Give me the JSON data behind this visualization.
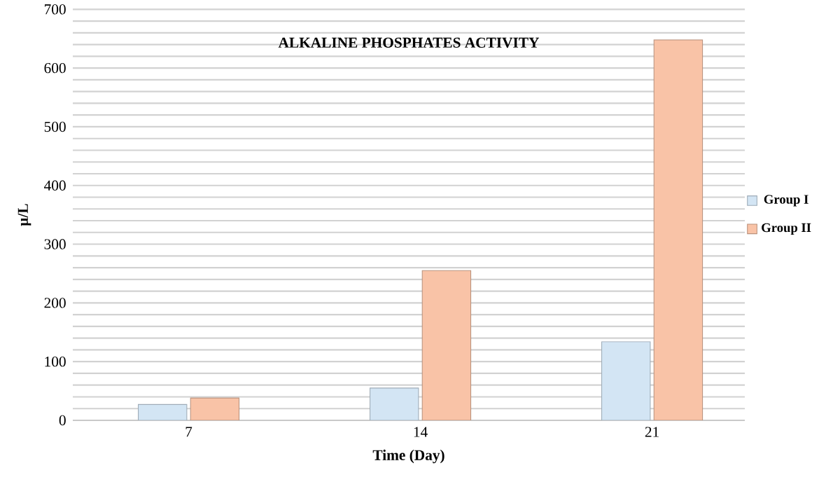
{
  "chart_data": {
    "type": "bar",
    "title": "ALKALINE PHOSPHATES ACTIVITY",
    "xlabel": "Time (Day)",
    "ylabel": "µ/L",
    "categories": [
      "7",
      "14",
      "21"
    ],
    "series": [
      {
        "name": "Group I",
        "color": "#d3e5f4",
        "values": [
          27,
          55,
          134
        ]
      },
      {
        "name": "Group II",
        "color": "#f9c3a7",
        "values": [
          38,
          255,
          648
        ]
      }
    ],
    "ylim": [
      0,
      700
    ],
    "yticks": [
      0,
      100,
      200,
      300,
      400,
      500,
      600,
      700
    ],
    "grid": "y",
    "legend": "right"
  }
}
